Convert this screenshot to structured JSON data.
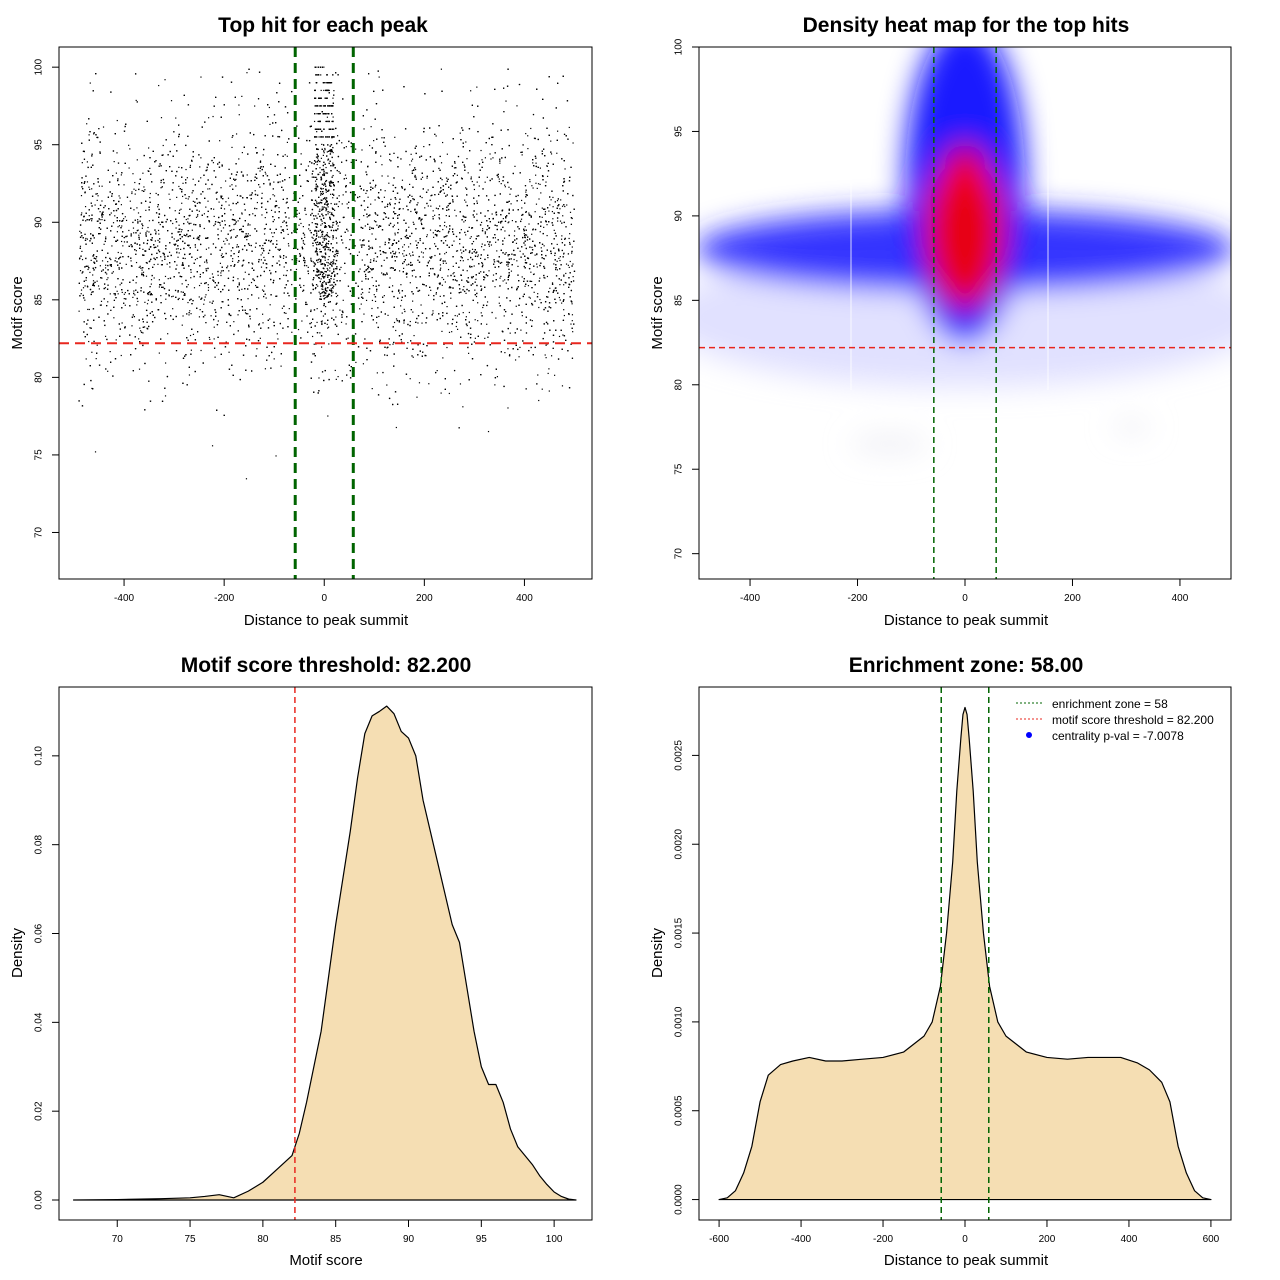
{
  "colors": {
    "point": "#000000",
    "zone_line": "#006400",
    "threshold_line": "#e8271f",
    "density_fill": "#f5deb3",
    "heat_low": "#ffffff",
    "heat_mid": "#0000ff",
    "heat_high": "#ff0000",
    "legend_point": "#0000ff"
  },
  "chart_data": [
    {
      "id": "scatter",
      "type": "scatter",
      "title": "Top hit for each peak",
      "xlabel": "Distance to peak summit",
      "ylabel": "Motif score",
      "xlim": [
        -530,
        535
      ],
      "ylim": [
        67,
        101.3
      ],
      "xticks": [
        "-400",
        "-200",
        "0",
        "200",
        "400"
      ],
      "yticks": [
        "70",
        "75",
        "80",
        "85",
        "90",
        "95",
        "100"
      ],
      "points_estimated": {
        "n": 9000,
        "x_range": [
          -490,
          500
        ],
        "background_score_mean": 88.5,
        "background_score_sd": 4,
        "central_cluster_x_range": [
          -20,
          20
        ],
        "central_cluster_score_range": [
          85,
          100
        ]
      },
      "vlines": [
        -58,
        58
      ],
      "hline": 82.2,
      "grid": false
    },
    {
      "id": "heatmap",
      "type": "heatmap",
      "title": "Density heat map for the top hits",
      "xlabel": "Distance to peak summit",
      "ylabel": "Motif score",
      "xlim": [
        -495,
        495
      ],
      "ylim": [
        68.5,
        100
      ],
      "xticks": [
        "-400",
        "-200",
        "0",
        "200",
        "400"
      ],
      "yticks": [
        "70",
        "75",
        "80",
        "85",
        "90",
        "95",
        "100"
      ],
      "density_peaks_estimated": [
        {
          "x": 0,
          "y": 88,
          "level": "high"
        },
        {
          "x": 0,
          "y": 90,
          "level": "high"
        },
        {
          "x": 0,
          "y": 93,
          "level": "high"
        },
        {
          "x": 0,
          "y": 96,
          "level": "medium"
        },
        {
          "x": -300,
          "y": 88,
          "level": "medium"
        },
        {
          "x": 300,
          "y": 88,
          "level": "medium"
        }
      ],
      "vlines": [
        -58,
        58
      ],
      "hline": 82.2,
      "grid": false
    },
    {
      "id": "score-density",
      "type": "area",
      "title": "Motif score threshold: 82.200",
      "xlabel": "Motif score",
      "ylabel": "Density",
      "xlim": [
        66.0,
        102.6
      ],
      "ylim": [
        -0.0045,
        0.1155
      ],
      "xticks": [
        "70",
        "75",
        "80",
        "85",
        "90",
        "95",
        "100"
      ],
      "yticks": [
        "0.00",
        "0.02",
        "0.04",
        "0.06",
        "0.08",
        "0.10"
      ],
      "x": [
        67,
        70,
        73,
        75,
        76,
        77,
        78,
        79,
        80,
        81,
        82,
        82.5,
        83,
        84,
        85,
        86,
        86.5,
        87,
        87.5,
        88,
        88.5,
        89,
        89.5,
        90,
        90.5,
        91,
        92,
        93,
        93.5,
        94,
        94.5,
        95,
        95.5,
        96,
        96.5,
        97,
        97.5,
        98,
        98.5,
        99,
        99.5,
        100,
        100.5,
        101,
        101.5
      ],
      "values": [
        0,
        0.0001,
        0.0003,
        0.0005,
        0.0008,
        0.0012,
        0.0005,
        0.002,
        0.004,
        0.007,
        0.01,
        0.015,
        0.022,
        0.038,
        0.062,
        0.083,
        0.095,
        0.105,
        0.109,
        0.11,
        0.1112,
        0.1095,
        0.1055,
        0.104,
        0.1,
        0.09,
        0.076,
        0.062,
        0.058,
        0.048,
        0.038,
        0.03,
        0.026,
        0.026,
        0.022,
        0.016,
        0.012,
        0.01,
        0.008,
        0.0055,
        0.0035,
        0.0018,
        0.0008,
        0.0002,
        0
      ],
      "vline": 82.2,
      "grid": false
    },
    {
      "id": "distance-density",
      "type": "area",
      "title": "Enrichment zone: 58.00",
      "xlabel": "Distance to peak summit",
      "ylabel": "Density",
      "xlim": [
        -649,
        649
      ],
      "ylim": [
        -0.000115,
        0.002885
      ],
      "xticks": [
        "-600",
        "-400",
        "-200",
        "0",
        "200",
        "400",
        "600"
      ],
      "yticks": [
        "0.0000",
        "0.0005",
        "0.0010",
        "0.0015",
        "0.0020",
        "0.0025"
      ],
      "x": [
        -600,
        -580,
        -560,
        -540,
        -520,
        -500,
        -480,
        -450,
        -420,
        -380,
        -340,
        -300,
        -250,
        -200,
        -150,
        -100,
        -80,
        -60,
        -45,
        -30,
        -20,
        -10,
        -5,
        0,
        5,
        10,
        20,
        30,
        45,
        60,
        80,
        100,
        150,
        200,
        250,
        300,
        340,
        380,
        420,
        450,
        480,
        500,
        520,
        540,
        560,
        580,
        600
      ],
      "values": [
        0,
        1e-05,
        5e-05,
        0.00015,
        0.0003,
        0.00055,
        0.0007,
        0.00076,
        0.00078,
        0.0008,
        0.00078,
        0.00078,
        0.00079,
        0.0008,
        0.00083,
        0.00092,
        0.001,
        0.0012,
        0.0015,
        0.0019,
        0.0023,
        0.0026,
        0.00273,
        0.00277,
        0.00273,
        0.0026,
        0.0023,
        0.0019,
        0.0015,
        0.0012,
        0.001,
        0.00092,
        0.00083,
        0.0008,
        0.00079,
        0.0008,
        0.0008,
        0.0008,
        0.00077,
        0.00073,
        0.00066,
        0.00055,
        0.0003,
        0.00015,
        5e-05,
        1e-05,
        0
      ],
      "vlines": [
        -58,
        58
      ],
      "legend": {
        "placement": "top-right",
        "items": [
          {
            "label": "enrichment zone = 58",
            "style": "dotted",
            "color": "#006400"
          },
          {
            "label": "motif score threshold = 82.200",
            "style": "dotted",
            "color": "#e8271f"
          },
          {
            "label": "centrality p-val = -7.0078",
            "style": "point",
            "color": "#0000ff"
          }
        ]
      },
      "grid": false
    }
  ]
}
